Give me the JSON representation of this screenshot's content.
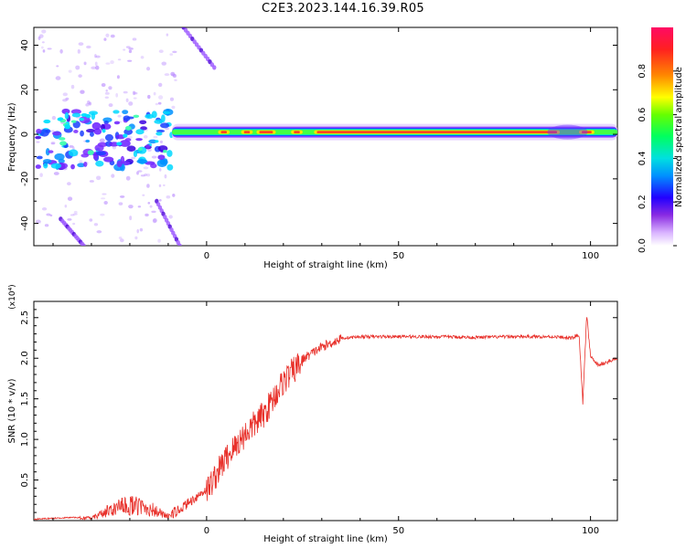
{
  "title": "C2E3.2023.144.16.39.R05",
  "chart_data": [
    {
      "type": "heatmap",
      "xlabel": "Height of straight line (km)",
      "ylabel": "Frequency (Hz)",
      "xlim": [
        -45,
        107
      ],
      "ylim": [
        -50,
        48
      ],
      "xticks": [
        0,
        50,
        100
      ],
      "yticks": [
        -40,
        -20,
        0,
        20,
        40
      ],
      "colorbar": {
        "label": "Normalized spectral amplitude",
        "range": [
          0,
          1
        ],
        "ticks": [
          "0.0",
          "0.2",
          "0.4",
          "0.6",
          "0.8"
        ]
      },
      "features": {
        "carrier_line_hz": 1,
        "carrier_span_km": [
          -9,
          107
        ],
        "carrier_peak_segments_km": [
          [
            3,
            6
          ],
          [
            9,
            12
          ],
          [
            13,
            18
          ],
          [
            22,
            25
          ],
          [
            28,
            92
          ],
          [
            97,
            101
          ]
        ],
        "noisy_region_km": [
          -45,
          -9
        ],
        "diagonal_streaks": [
          {
            "from": [
              -6,
              48
            ],
            "to": [
              2,
              30
            ]
          },
          {
            "from": [
              -13,
              -30
            ],
            "to": [
              -7,
              -50
            ]
          },
          {
            "from": [
              -38,
              -38
            ],
            "to": [
              -32,
              -50
            ]
          }
        ]
      }
    },
    {
      "type": "line",
      "xlabel": "Height of straight line (km)",
      "ylabel": "SNR (10 * v/v)",
      "y_multiplier": "(x10⁴)",
      "xlim": [
        -45,
        107
      ],
      "ylim": [
        0,
        2.7
      ],
      "xticks": [
        0,
        50,
        100
      ],
      "yticks": [
        "0.5",
        "1.0",
        "1.5",
        "2.0",
        "2.5"
      ],
      "series_color": "#e8302a",
      "x": [
        -45,
        -35,
        -30,
        -25,
        -20,
        -15,
        -10,
        -5,
        0,
        5,
        10,
        15,
        20,
        25,
        30,
        35,
        40,
        50,
        60,
        70,
        80,
        90,
        95,
        97,
        98,
        99,
        100,
        102,
        105,
        107
      ],
      "y": [
        0.02,
        0.04,
        0.03,
        0.14,
        0.2,
        0.16,
        0.05,
        0.22,
        0.4,
        0.8,
        1.1,
        1.35,
        1.75,
        2.0,
        2.15,
        2.25,
        2.27,
        2.27,
        2.27,
        2.26,
        2.27,
        2.27,
        2.25,
        2.3,
        1.45,
        2.55,
        2.02,
        1.92,
        1.97,
        2.0
      ]
    }
  ]
}
